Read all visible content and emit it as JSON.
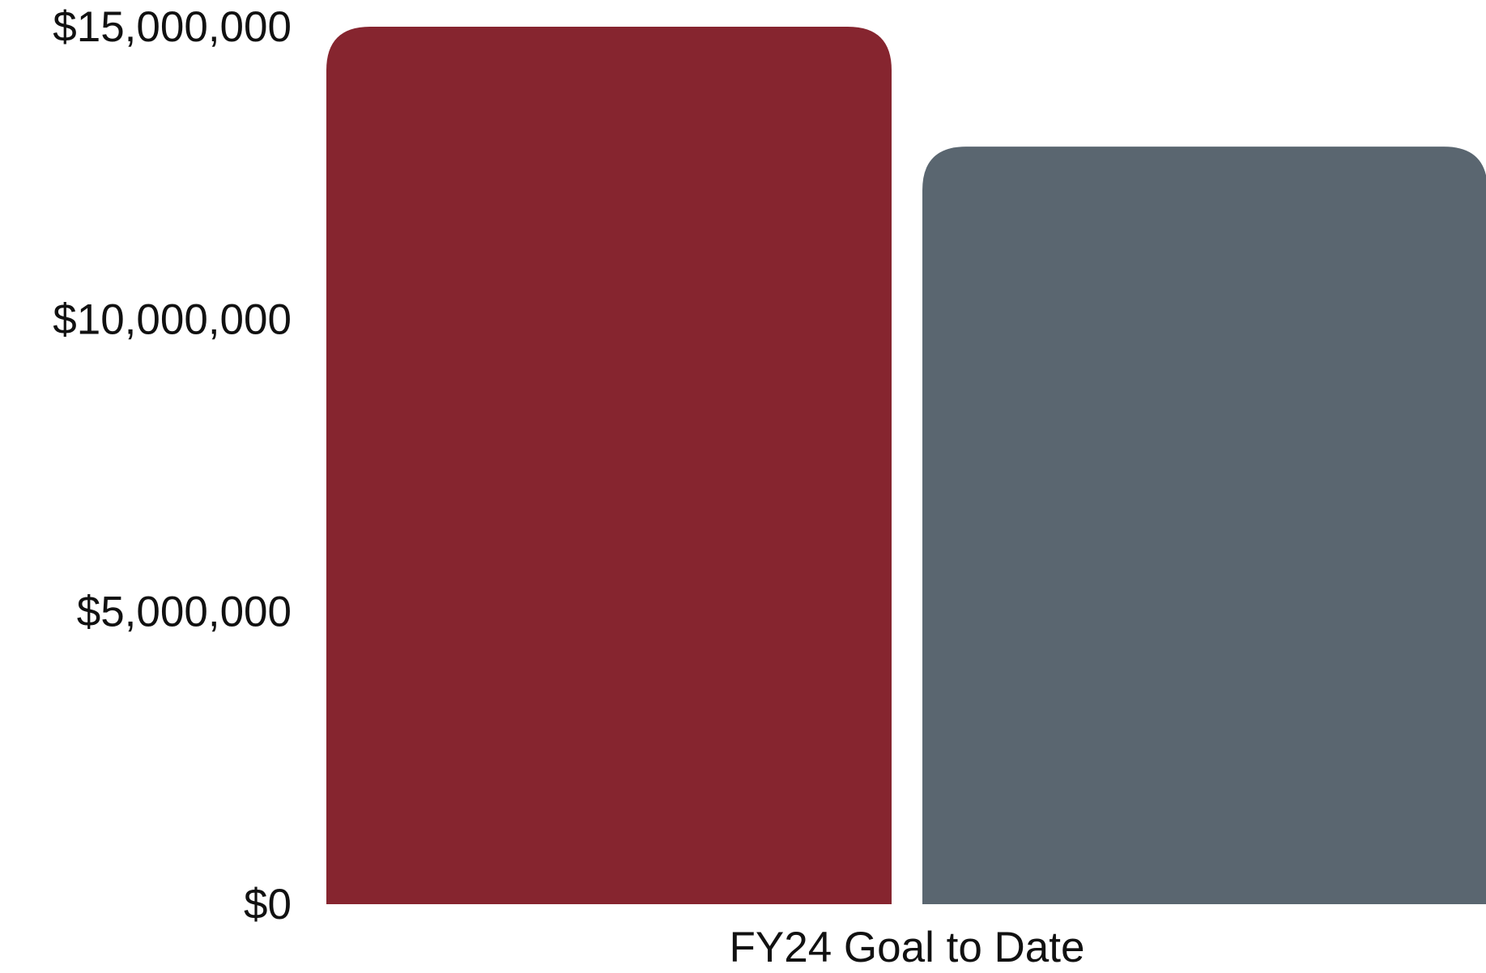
{
  "chart_data": {
    "type": "bar",
    "categories": [
      "FY24 Goal to Date"
    ],
    "series": [
      {
        "values": [
          15000000
        ],
        "color": "#86252F"
      },
      {
        "values": [
          12950000
        ],
        "color": "#5A6670"
      }
    ],
    "title": "",
    "xlabel": "",
    "ylabel": "",
    "ylim": [
      0,
      15000000
    ],
    "yticks": [
      0,
      5000000,
      10000000,
      15000000
    ],
    "ytick_labels": [
      "$0",
      "$5,000,000",
      "$10,000,000",
      "$15,000,000"
    ],
    "grid": false,
    "legend": "none"
  }
}
